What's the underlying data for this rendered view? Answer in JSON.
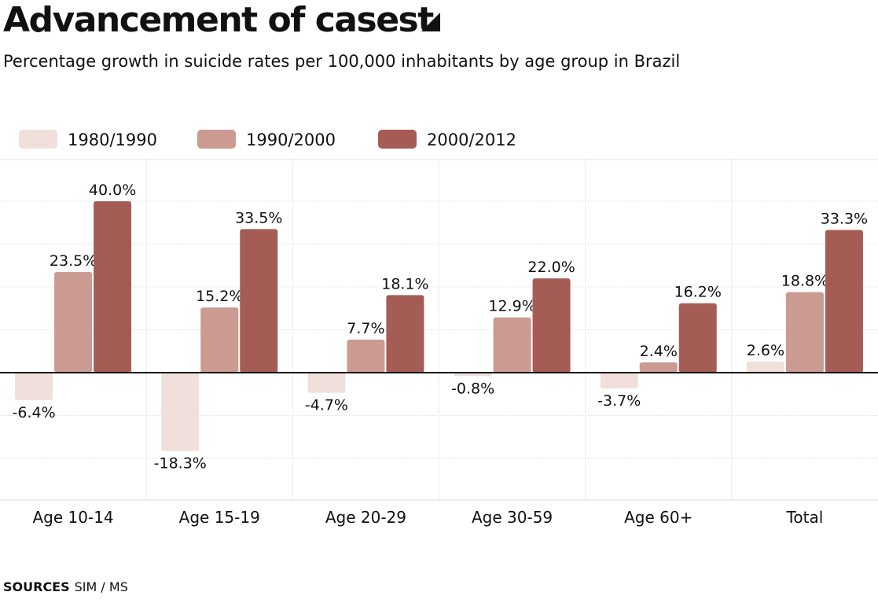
{
  "header": {
    "title": "Advancement of casest",
    "subtitle": "Percentage growth in suicide rates per 100,000 inhabitants by age group in Brazil"
  },
  "source": {
    "label": "SOURCES",
    "text": "SIM / MS"
  },
  "icons": {
    "title_marker": "triangle-marker-icon"
  },
  "chart_data": {
    "type": "bar",
    "title": "Advancement of casest",
    "subtitle": "Percentage growth in suicide rates per 100,000 inhabitants by age group in Brazil",
    "xlabel": "",
    "ylabel": "",
    "categories": [
      "Age 10-14",
      "Age 15-19",
      "Age 20-29",
      "Age 30-59",
      "Age 60+",
      "Total"
    ],
    "series": [
      {
        "name": "1980/1990",
        "color": "#f0dfdb",
        "values": [
          -6.4,
          -18.3,
          -4.7,
          -0.8,
          -3.7,
          2.6
        ],
        "labels": [
          "-6.4%",
          "-18.3%",
          "-4.7%",
          "-0.8%",
          "-3.7%",
          "2.6%"
        ]
      },
      {
        "name": "1990/2000",
        "color": "#cb9a90",
        "values": [
          23.5,
          15.2,
          7.7,
          12.9,
          2.4,
          18.8
        ],
        "labels": [
          "23.5%",
          "15.2%",
          "7.7%",
          "12.9%",
          "2.4%",
          "18.8%"
        ]
      },
      {
        "name": "2000/2012",
        "color": "#a45c55",
        "values": [
          40.0,
          33.5,
          18.1,
          22.0,
          16.2,
          33.3
        ],
        "labels": [
          "40.0%",
          "33.5%",
          "18.1%",
          "22.0%",
          "16.2%",
          "33.3%"
        ]
      }
    ],
    "ylim": [
      -30,
      50
    ],
    "grid": true,
    "legend_position": "top-left"
  }
}
